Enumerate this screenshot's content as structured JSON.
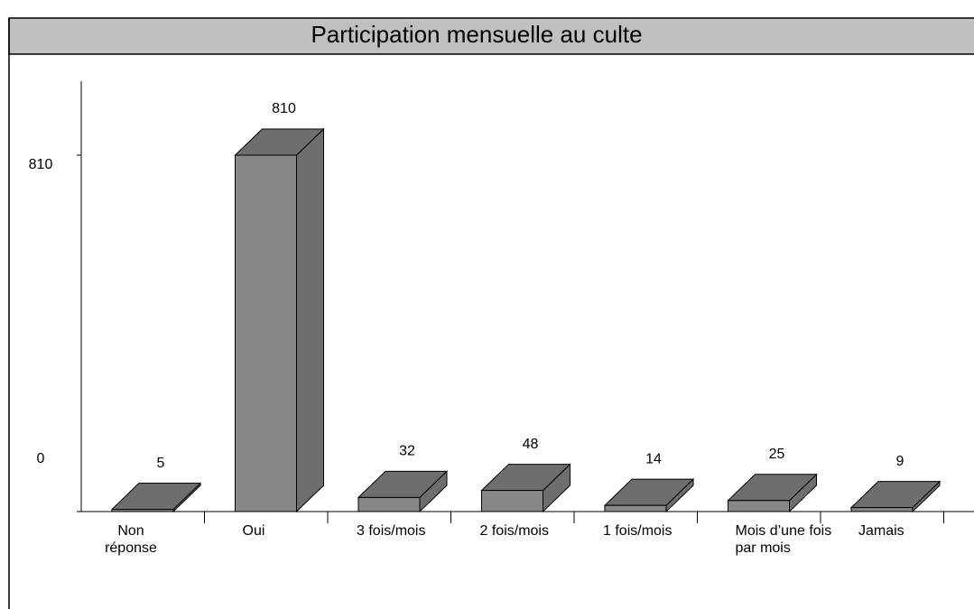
{
  "chart_data": {
    "type": "bar3d",
    "title": "Participation mensuelle au culte",
    "categories": [
      "Non réponse",
      "Oui",
      "3 fois/mois",
      "2 fois/mois",
      "1 fois/mois",
      "Mois d’une fois par mois",
      "Jamais"
    ],
    "values": [
      5,
      810,
      32,
      48,
      14,
      25,
      9
    ],
    "color": "#888888",
    "ylim": [
      0,
      810
    ],
    "yticks": [
      0,
      810
    ]
  }
}
